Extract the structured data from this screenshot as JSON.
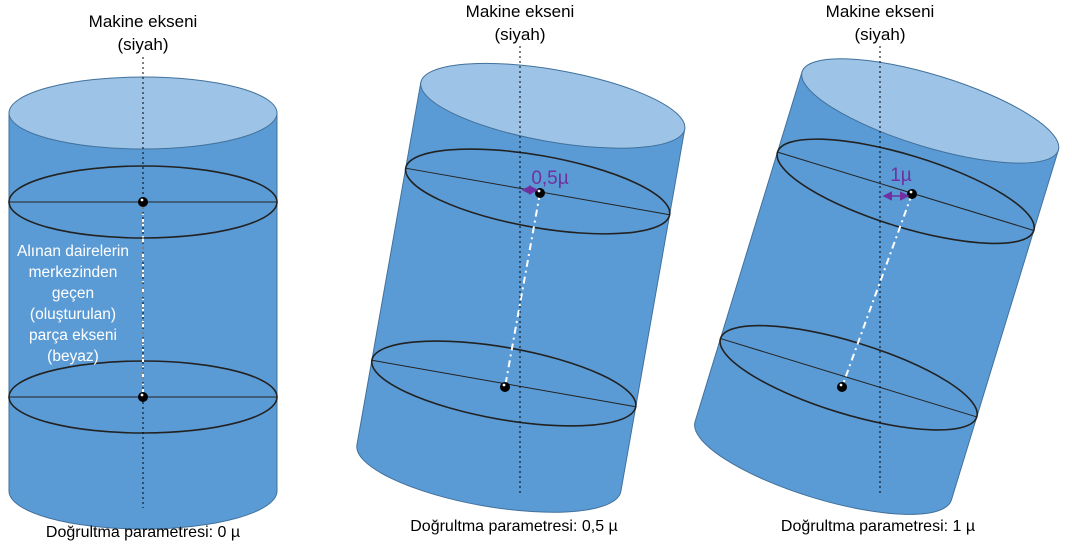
{
  "axis_title_line1": "Makine ekseni",
  "axis_title_line2": "(siyah)",
  "part_axis_note": [
    "Alınan dairelerin",
    "merkezinden",
    "geçen",
    "(oluşturulan)",
    "parça ekseni",
    "(beyaz)"
  ],
  "panels": [
    {
      "offset_label": "",
      "caption": "Doğrultma parametresi: 0 µ"
    },
    {
      "offset_label": "0,5µ",
      "caption": "Doğrultma parametresi: 0,5 µ"
    },
    {
      "offset_label": "1µ",
      "caption": "Doğrultma parametresi: 1 µ"
    }
  ],
  "colors": {
    "cylinder_body": "#5b9bd5",
    "cylinder_top": "#9dc3e6",
    "outline": "#41719c",
    "offset_marker": "#7030a0"
  }
}
